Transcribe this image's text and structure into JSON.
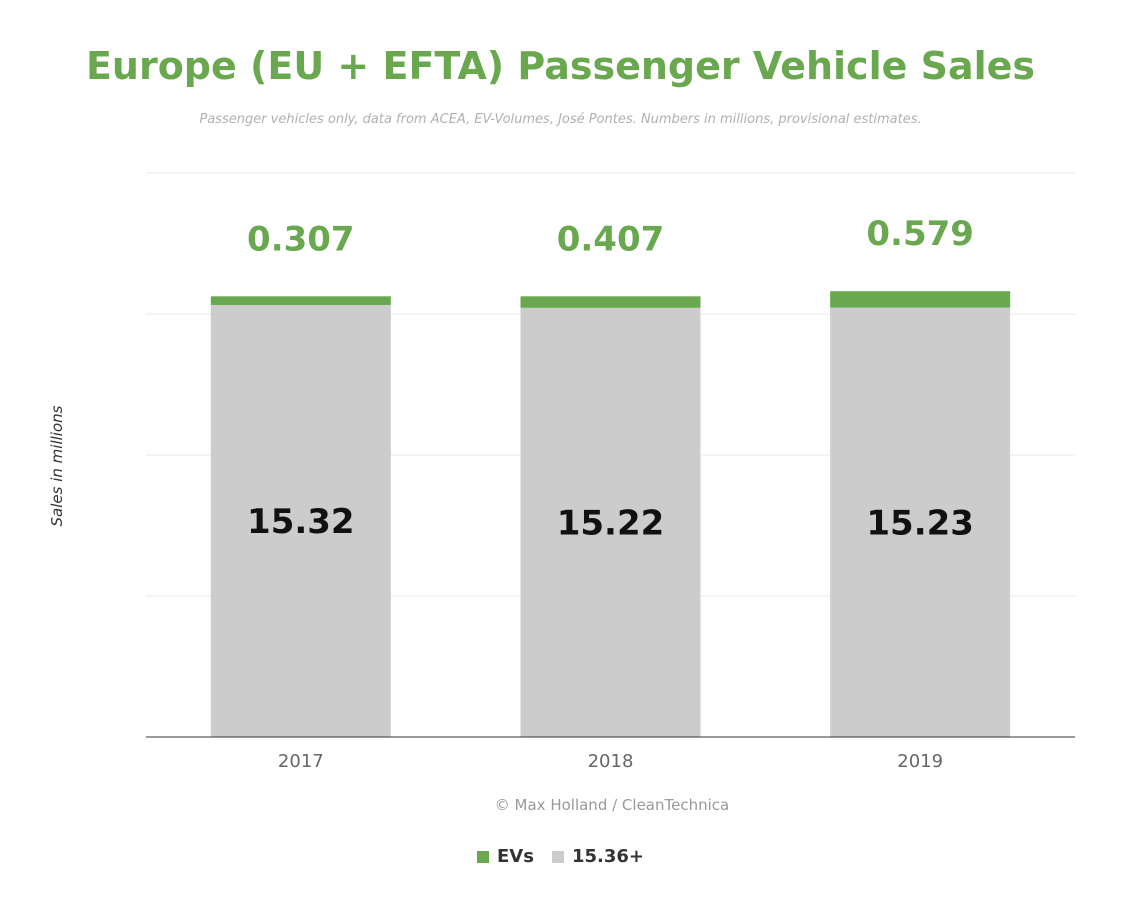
{
  "header": {
    "title": "Europe (EU + EFTA) Passenger Vehicle Sales",
    "subtitle": "Passenger vehicles only, data from ACEA, EV-Volumes, José Pontes. Numbers in millions, provisional estimates."
  },
  "credit": "© Max Holland / CleanTechnica",
  "chart_data": {
    "type": "bar",
    "stacked": true,
    "title": "Europe (EU + EFTA) Passenger Vehicle Sales",
    "subtitle": "Passenger vehicles only, data from ACEA, EV-Volumes, José Pontes. Numbers in millions, provisional estimates.",
    "xlabel": "",
    "ylabel": "Sales in millions",
    "categories": [
      "2017",
      "2018",
      "2019"
    ],
    "series": [
      {
        "name": "15.36+",
        "color": "#cccccc",
        "values": [
          15.32,
          15.22,
          15.23
        ],
        "labels": [
          "15.32",
          "15.22",
          "15.23"
        ]
      },
      {
        "name": "EVs",
        "color": "#6aa84f",
        "values": [
          0.307,
          0.407,
          0.579
        ],
        "labels": [
          "0.307",
          "0.407",
          "0.579"
        ]
      }
    ],
    "legend": [
      {
        "name": "EVs",
        "color": "#6aa84f"
      },
      {
        "name": "15.36+",
        "color": "#cccccc"
      }
    ],
    "ylim": [
      0,
      20
    ],
    "y_gridlines": [
      0,
      5,
      10,
      15,
      20
    ],
    "y_tick_labels_shown": false,
    "grid": true,
    "legend_position": "bottom"
  }
}
